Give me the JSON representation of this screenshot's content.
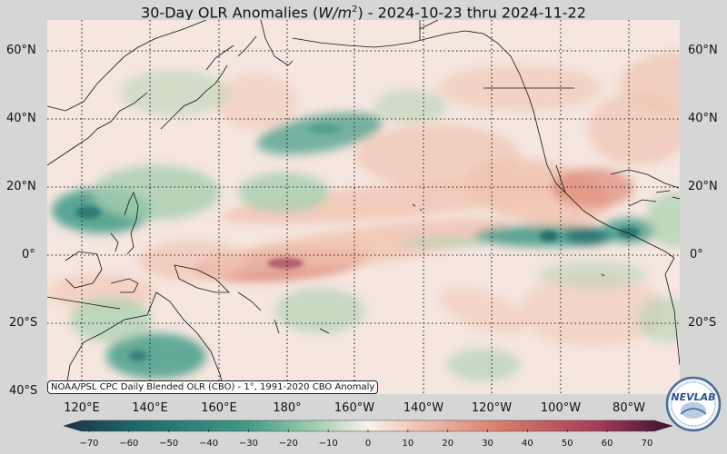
{
  "title": {
    "prefix": "30-Day OLR Anomalies (",
    "unit": "W/m",
    "unit_sup": "2",
    "suffix": ") - 2024-10-23 thru 2024-11-22"
  },
  "map": {
    "projection": "equirectangular",
    "lat_range": [
      -40,
      68
    ],
    "lon_range": [
      106,
      288
    ],
    "lat_labels_left": [
      "60°N",
      "40°N",
      "20°N",
      "0°",
      "20°S",
      "40°S"
    ],
    "lat_labels_right": [
      "60°N",
      "40°N",
      "20°N",
      "0°",
      "20°S"
    ],
    "lon_labels": [
      "120°E",
      "140°E",
      "160°E",
      "180°",
      "160°W",
      "140°W",
      "120°W",
      "100°W",
      "80°W"
    ],
    "gridline_style": "dotted",
    "anomaly_regions": [
      {
        "name": "central-pacific-suppressed",
        "sign": "positive",
        "strength": 50
      },
      {
        "name": "east-pacific-itcz-enhanced",
        "sign": "negative",
        "strength": -35
      },
      {
        "name": "philippine-sea-enhanced",
        "sign": "negative",
        "strength": -25
      },
      {
        "name": "central-america-enhanced",
        "sign": "negative",
        "strength": -30
      },
      {
        "name": "mexico-suppressed",
        "sign": "positive",
        "strength": 30
      },
      {
        "name": "north-pacific-enhanced",
        "sign": "negative",
        "strength": -20
      },
      {
        "name": "australia-enhanced",
        "sign": "negative",
        "strength": -20
      }
    ]
  },
  "credit": "NOAA/PSL CPC Daily Blended OLR (CBO) - 1°, 1991-2020 CBO Anomaly",
  "colorbar": {
    "ticks": [
      "−70",
      "−60",
      "−50",
      "−40",
      "−30",
      "−20",
      "−10",
      "0",
      "10",
      "20",
      "30",
      "40",
      "50",
      "60",
      "70"
    ],
    "range": [
      -75,
      75
    ],
    "colors": {
      "neg_extreme": "#1f2e4a",
      "neg_strong": "#1e6a6a",
      "neg_mid": "#3f9a86",
      "neg_weak": "#a8d0b0",
      "neutral": "#f7f2ee",
      "pos_weak": "#f0c4b2",
      "pos_mid": "#d97a68",
      "pos_strong": "#a33a5a",
      "pos_extreme": "#3a1030"
    }
  },
  "logo": {
    "text": "NEVLAB",
    "icon": "nevlab-globe-logo"
  }
}
